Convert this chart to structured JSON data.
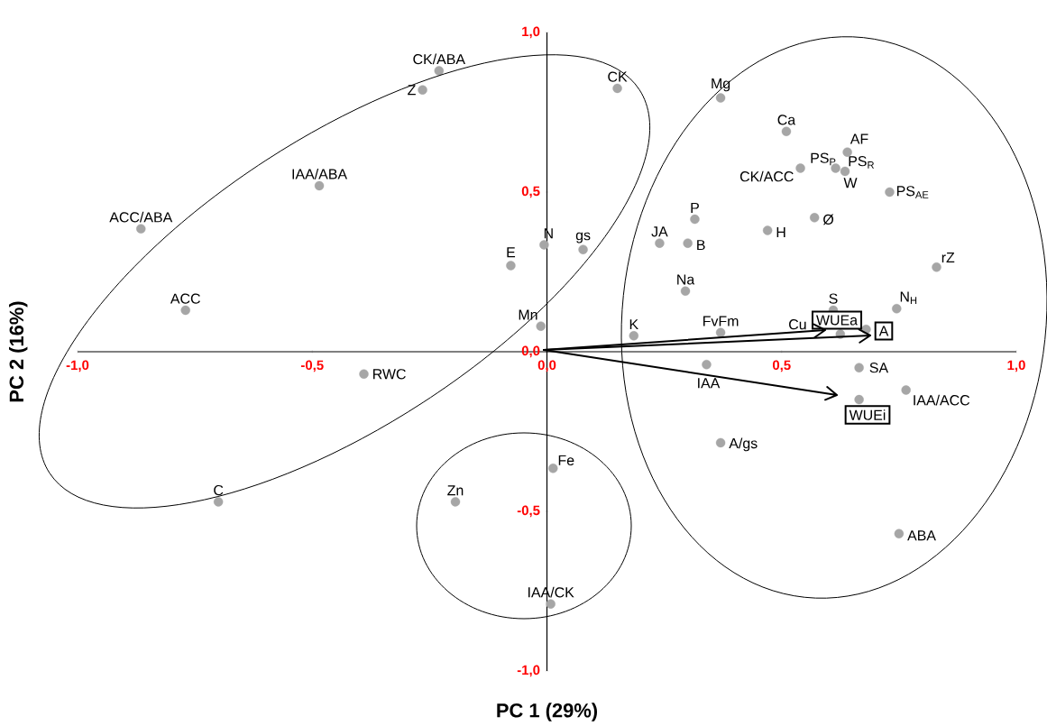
{
  "chart_data": {
    "type": "scatter",
    "xlabel": "PC 1 (29%)",
    "ylabel": "PC 2 (16%)",
    "xlim": [
      -1,
      1
    ],
    "ylim": [
      -1,
      1
    ],
    "xticks": [
      {
        "value": -1,
        "label": "-1,0"
      },
      {
        "value": -0.5,
        "label": "-0,5"
      },
      {
        "value": 0,
        "label": "0,0"
      },
      {
        "value": 0.5,
        "label": "0,5"
      },
      {
        "value": 1,
        "label": "1,0"
      }
    ],
    "yticks": [
      {
        "value": -1,
        "label": "-1,0"
      },
      {
        "value": -0.5,
        "label": "-0,5"
      },
      {
        "value": 0,
        "label": "0,0"
      },
      {
        "value": 0.5,
        "label": "0,5"
      },
      {
        "value": 1,
        "label": "1,0"
      }
    ],
    "series": [
      {
        "color": "#a6a6a6",
        "x": [
          -0.23,
          -0.265,
          0.15,
          -0.485,
          -0.865,
          -0.77,
          -0.077,
          -0.006,
          0.077,
          -0.013,
          -0.39,
          -0.7,
          -0.195,
          0.013,
          0.008,
          0.37,
          0.51,
          0.64,
          0.54,
          0.615,
          0.635,
          0.73,
          0.57,
          0.47,
          0.315,
          0.24,
          0.3,
          0.83,
          0.295,
          0.61,
          0.745,
          0.185,
          0.37,
          0.625,
          0.68,
          0.34,
          0.665,
          0.765,
          0.665,
          0.37,
          0.75
        ],
        "values": [
          0.88,
          0.82,
          0.825,
          0.52,
          0.385,
          0.13,
          0.27,
          0.335,
          0.32,
          0.08,
          -0.07,
          -0.47,
          -0.47,
          -0.365,
          -0.79,
          0.795,
          0.69,
          0.625,
          0.575,
          0.575,
          0.565,
          0.5,
          0.42,
          0.38,
          0.415,
          0.34,
          0.34,
          0.265,
          0.19,
          0.13,
          0.135,
          0.05,
          0.06,
          0.055,
          0.07,
          -0.04,
          -0.05,
          -0.12,
          -0.15,
          -0.285,
          -0.57
        ]
      }
    ],
    "annotations": [
      {
        "text": "CK/ABA",
        "x": -0.23,
        "y": 0.88
      },
      {
        "text": "Z",
        "x": -0.265,
        "y": 0.82
      },
      {
        "text": "CK",
        "x": 0.15,
        "y": 0.825
      },
      {
        "text": "IAA/ABA",
        "x": -0.485,
        "y": 0.52
      },
      {
        "text": "ACC/ABA",
        "x": -0.865,
        "y": 0.385
      },
      {
        "text": "ACC",
        "x": -0.77,
        "y": 0.13
      },
      {
        "text": "E",
        "x": -0.077,
        "y": 0.27
      },
      {
        "text": "N",
        "x": -0.006,
        "y": 0.335
      },
      {
        "text": "gs",
        "x": 0.077,
        "y": 0.32
      },
      {
        "text": "Mn",
        "x": -0.013,
        "y": 0.08
      },
      {
        "text": "RWC",
        "x": -0.39,
        "y": -0.07
      },
      {
        "text": "C",
        "x": -0.7,
        "y": -0.47
      },
      {
        "text": "Zn",
        "x": -0.195,
        "y": -0.47
      },
      {
        "text": "Fe",
        "x": 0.013,
        "y": -0.365
      },
      {
        "text": "IAA/CK",
        "x": 0.008,
        "y": -0.79
      },
      {
        "text": "Mg",
        "x": 0.37,
        "y": 0.795
      },
      {
        "text": "Ca",
        "x": 0.51,
        "y": 0.69
      },
      {
        "text": "AF",
        "x": 0.64,
        "y": 0.625
      },
      {
        "text": "CK/ACC",
        "x": 0.54,
        "y": 0.575
      },
      {
        "text": "PS$_{P}$",
        "x": 0.615,
        "y": 0.575
      },
      {
        "text": "PS$_{R}$",
        "x": 0.635,
        "y": 0.565
      },
      {
        "text": "W",
        "x": 0.635,
        "y": 0.565
      },
      {
        "text": "PS$_{AE}$",
        "x": 0.73,
        "y": 0.5
      },
      {
        "text": "Ø",
        "x": 0.57,
        "y": 0.42
      },
      {
        "text": "H",
        "x": 0.47,
        "y": 0.38
      },
      {
        "text": "P",
        "x": 0.315,
        "y": 0.415
      },
      {
        "text": "JA",
        "x": 0.24,
        "y": 0.34
      },
      {
        "text": "B",
        "x": 0.3,
        "y": 0.34
      },
      {
        "text": "rZ",
        "x": 0.83,
        "y": 0.265
      },
      {
        "text": "Na",
        "x": 0.295,
        "y": 0.19
      },
      {
        "text": "S",
        "x": 0.61,
        "y": 0.13
      },
      {
        "text": "N$_{H}$",
        "x": 0.745,
        "y": 0.135
      },
      {
        "text": "K",
        "x": 0.185,
        "y": 0.05
      },
      {
        "text": "FvFm",
        "x": 0.37,
        "y": 0.06
      },
      {
        "text": "Cu",
        "x": 0.625,
        "y": 0.055
      },
      {
        "text": "IAA",
        "x": 0.34,
        "y": -0.04
      },
      {
        "text": "SA",
        "x": 0.665,
        "y": -0.05
      },
      {
        "text": "IAA/ACC",
        "x": 0.765,
        "y": -0.12
      },
      {
        "text": "A/gs",
        "x": 0.37,
        "y": -0.285
      },
      {
        "text": "ABA",
        "x": 0.75,
        "y": -0.57
      },
      "WUEa",
      "A",
      "WUEi"
    ]
  }
}
